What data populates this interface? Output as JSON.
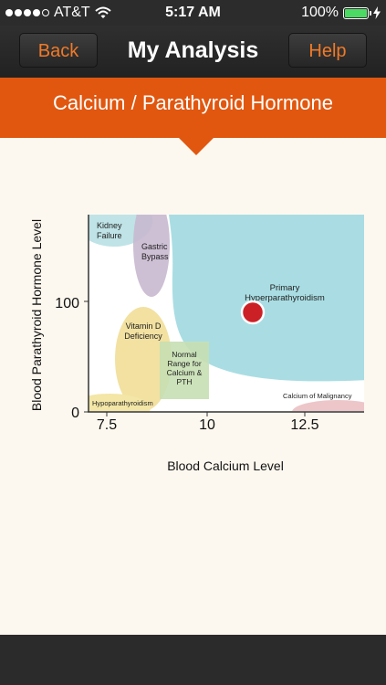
{
  "status_bar": {
    "carrier": "AT&T",
    "time": "5:17 AM",
    "battery": "100%",
    "signal_bars": 4,
    "signal_total": 5
  },
  "nav": {
    "back_label": "Back",
    "title": "My Analysis",
    "help_label": "Help"
  },
  "banner": {
    "title": "Calcium / Parathyroid Hormone"
  },
  "chart": {
    "xlabel": "Blood Calcium Level",
    "ylabel": "Blood Parathyroid Hormone Level",
    "x_ticks": [
      "7.5",
      "10",
      "12.5"
    ],
    "y_ticks": [
      "0",
      "100"
    ],
    "regions": {
      "kidney_failure": "Kidney Failure",
      "gastric_bypass": "Gastric Bypass",
      "primary_hyper": "Primary Hyperparathyroidism",
      "vitamin_d": "Vitamin D Deficiency",
      "normal_range": "Normal Range for Calcium & PTH",
      "hypopara": "Hypoparathyroidism",
      "malignancy": "Calcium of Malignancy"
    },
    "colors": {
      "hyper": "#a9dde3",
      "kidney": "#bfe3e6",
      "gastric": "#c8b8cf",
      "vitamin": "#f1df9c",
      "normal": "#c7dfb3",
      "hypo": "#f3e6a6",
      "malignancy": "#edc6c9",
      "marker": "#cc2027"
    }
  }
}
